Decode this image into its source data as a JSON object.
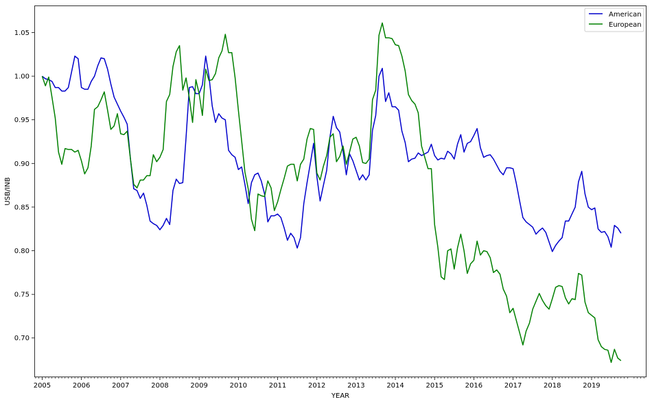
{
  "chart_data": {
    "type": "line",
    "title": "",
    "xlabel": "YEAR",
    "ylabel": "USB/INB",
    "xlim": [
      2004.8,
      2020.4
    ],
    "ylim": [
      0.655,
      1.081
    ],
    "x_ticks": [
      2005,
      2006,
      2007,
      2008,
      2009,
      2010,
      2011,
      2012,
      2013,
      2014,
      2015,
      2016,
      2017,
      2018,
      2019
    ],
    "x_tick_labels": [
      "2005",
      "2006",
      "2007",
      "2008",
      "2009",
      "2010",
      "2011",
      "2012",
      "2013",
      "2014",
      "2015",
      "2016",
      "2017",
      "2018",
      "2019"
    ],
    "y_ticks": [
      0.7,
      0.75,
      0.8,
      0.85,
      0.9,
      0.95,
      1.0,
      1.05
    ],
    "y_tick_labels": [
      "0.70",
      "0.75",
      "0.80",
      "0.85",
      "0.90",
      "0.95",
      "1.00",
      "1.05"
    ],
    "grid": false,
    "legend": "top-right",
    "series": [
      {
        "name": "American",
        "color": "#0000cc",
        "x": [
          2005.0,
          2005.083,
          2005.167,
          2005.25,
          2005.333,
          2005.417,
          2005.5,
          2005.583,
          2005.667,
          2005.75,
          2005.833,
          2005.917,
          2006.0,
          2006.083,
          2006.167,
          2006.25,
          2006.333,
          2006.417,
          2006.5,
          2006.583,
          2006.667,
          2006.75,
          2006.833,
          2006.917,
          2007.0,
          2007.083,
          2007.167,
          2007.25,
          2007.333,
          2007.417,
          2007.5,
          2007.583,
          2007.667,
          2007.75,
          2007.833,
          2007.917,
          2008.0,
          2008.083,
          2008.167,
          2008.25,
          2008.333,
          2008.417,
          2008.5,
          2008.583,
          2008.667,
          2008.75,
          2008.833,
          2008.917,
          2009.0,
          2009.083,
          2009.167,
          2009.25,
          2009.333,
          2009.417,
          2009.5,
          2009.583,
          2009.667,
          2009.75,
          2009.833,
          2009.917,
          2010.0,
          2010.083,
          2010.167,
          2010.25,
          2010.333,
          2010.417,
          2010.5,
          2010.583,
          2010.667,
          2010.75,
          2010.833,
          2010.917,
          2011.0,
          2011.083,
          2011.167,
          2011.25,
          2011.333,
          2011.417,
          2011.5,
          2011.583,
          2011.667,
          2011.75,
          2011.833,
          2011.917,
          2012.0,
          2012.083,
          2012.167,
          2012.25,
          2012.333,
          2012.417,
          2012.5,
          2012.583,
          2012.667,
          2012.75,
          2012.833,
          2012.917,
          2013.0,
          2013.083,
          2013.167,
          2013.25,
          2013.333,
          2013.417,
          2013.5,
          2013.583,
          2013.667,
          2013.75,
          2013.833,
          2013.917,
          2014.0,
          2014.083,
          2014.167,
          2014.25,
          2014.333,
          2014.417,
          2014.5,
          2014.583,
          2014.667,
          2014.75,
          2014.833,
          2014.917,
          2015.0,
          2015.083,
          2015.167,
          2015.25,
          2015.333,
          2015.417,
          2015.5,
          2015.583,
          2015.667,
          2015.75,
          2015.833,
          2015.917,
          2016.0,
          2016.083,
          2016.167,
          2016.25,
          2016.333,
          2016.417,
          2016.5,
          2016.583,
          2016.667,
          2016.75,
          2016.833,
          2016.917,
          2017.0,
          2017.083,
          2017.167,
          2017.25,
          2017.333,
          2017.417,
          2017.5,
          2017.583,
          2017.667,
          2017.75,
          2017.833,
          2017.917,
          2018.0,
          2018.083,
          2018.167,
          2018.25,
          2018.333,
          2018.417,
          2018.5,
          2018.583,
          2018.667,
          2018.75,
          2018.833,
          2018.917,
          2019.0,
          2019.083,
          2019.167,
          2019.25,
          2019.333,
          2019.417,
          2019.5,
          2019.583,
          2019.667,
          2019.75
        ],
        "y": [
          1.0,
          0.997,
          0.996,
          0.994,
          0.987,
          0.987,
          0.983,
          0.983,
          0.987,
          1.005,
          1.023,
          1.02,
          0.987,
          0.985,
          0.985,
          0.994,
          1.0,
          1.012,
          1.021,
          1.02,
          1.008,
          0.991,
          0.976,
          0.968,
          0.96,
          0.953,
          0.945,
          0.905,
          0.871,
          0.869,
          0.86,
          0.866,
          0.852,
          0.834,
          0.831,
          0.829,
          0.824,
          0.829,
          0.837,
          0.83,
          0.869,
          0.882,
          0.877,
          0.878,
          0.93,
          0.987,
          0.988,
          0.98,
          0.98,
          0.99,
          1.023,
          1.0,
          0.966,
          0.947,
          0.957,
          0.952,
          0.95,
          0.915,
          0.91,
          0.907,
          0.893,
          0.896,
          0.876,
          0.854,
          0.878,
          0.887,
          0.889,
          0.88,
          0.865,
          0.833,
          0.84,
          0.84,
          0.842,
          0.838,
          0.826,
          0.812,
          0.82,
          0.815,
          0.803,
          0.815,
          0.854,
          0.878,
          0.9,
          0.923,
          0.885,
          0.857,
          0.875,
          0.892,
          0.93,
          0.954,
          0.941,
          0.936,
          0.914,
          0.887,
          0.911,
          0.903,
          0.892,
          0.881,
          0.887,
          0.881,
          0.887,
          0.938,
          0.955,
          1.0,
          1.009,
          0.971,
          0.981,
          0.965,
          0.965,
          0.961,
          0.937,
          0.924,
          0.902,
          0.905,
          0.906,
          0.912,
          0.909,
          0.911,
          0.913,
          0.922,
          0.909,
          0.904,
          0.906,
          0.905,
          0.914,
          0.911,
          0.905,
          0.922,
          0.933,
          0.913,
          0.923,
          0.925,
          0.932,
          0.94,
          0.918,
          0.907,
          0.909,
          0.91,
          0.905,
          0.898,
          0.891,
          0.887,
          0.895,
          0.895,
          0.894,
          0.877,
          0.857,
          0.838,
          0.833,
          0.83,
          0.827,
          0.819,
          0.823,
          0.826,
          0.821,
          0.81,
          0.799,
          0.806,
          0.811,
          0.815,
          0.834,
          0.834,
          0.842,
          0.85,
          0.879,
          0.891,
          0.865,
          0.85,
          0.847,
          0.849,
          0.825,
          0.821,
          0.822,
          0.816,
          0.804,
          0.829,
          0.826,
          0.82
        ]
      },
      {
        "name": "European",
        "color": "#008000",
        "x": [
          2005.0,
          2005.083,
          2005.167,
          2005.25,
          2005.333,
          2005.417,
          2005.5,
          2005.583,
          2005.667,
          2005.75,
          2005.833,
          2005.917,
          2006.0,
          2006.083,
          2006.167,
          2006.25,
          2006.333,
          2006.417,
          2006.5,
          2006.583,
          2006.667,
          2006.75,
          2006.833,
          2006.917,
          2007.0,
          2007.083,
          2007.167,
          2007.25,
          2007.333,
          2007.417,
          2007.5,
          2007.583,
          2007.667,
          2007.75,
          2007.833,
          2007.917,
          2008.0,
          2008.083,
          2008.167,
          2008.25,
          2008.333,
          2008.417,
          2008.5,
          2008.583,
          2008.667,
          2008.75,
          2008.833,
          2008.917,
          2009.0,
          2009.083,
          2009.167,
          2009.25,
          2009.333,
          2009.417,
          2009.5,
          2009.583,
          2009.667,
          2009.75,
          2009.833,
          2009.917,
          2010.0,
          2010.083,
          2010.167,
          2010.25,
          2010.333,
          2010.417,
          2010.5,
          2010.583,
          2010.667,
          2010.75,
          2010.833,
          2010.917,
          2011.0,
          2011.083,
          2011.167,
          2011.25,
          2011.333,
          2011.417,
          2011.5,
          2011.583,
          2011.667,
          2011.75,
          2011.833,
          2011.917,
          2012.0,
          2012.083,
          2012.167,
          2012.25,
          2012.333,
          2012.417,
          2012.5,
          2012.583,
          2012.667,
          2012.75,
          2012.833,
          2012.917,
          2013.0,
          2013.083,
          2013.167,
          2013.25,
          2013.333,
          2013.417,
          2013.5,
          2013.583,
          2013.667,
          2013.75,
          2013.833,
          2013.917,
          2014.0,
          2014.083,
          2014.167,
          2014.25,
          2014.333,
          2014.417,
          2014.5,
          2014.583,
          2014.667,
          2014.75,
          2014.833,
          2014.917,
          2015.0,
          2015.083,
          2015.167,
          2015.25,
          2015.333,
          2015.417,
          2015.5,
          2015.583,
          2015.667,
          2015.75,
          2015.833,
          2015.917,
          2016.0,
          2016.083,
          2016.167,
          2016.25,
          2016.333,
          2016.417,
          2016.5,
          2016.583,
          2016.667,
          2016.75,
          2016.833,
          2016.917,
          2017.0,
          2017.083,
          2017.167,
          2017.25,
          2017.333,
          2017.417,
          2017.5,
          2017.583,
          2017.667,
          2017.75,
          2017.833,
          2017.917,
          2018.0,
          2018.083,
          2018.167,
          2018.25,
          2018.333,
          2018.417,
          2018.5,
          2018.583,
          2018.667,
          2018.75,
          2018.833,
          2018.917,
          2019.0,
          2019.083,
          2019.167,
          2019.25,
          2019.333,
          2019.417,
          2019.5,
          2019.583,
          2019.667,
          2019.75
        ],
        "y": [
          1.0,
          0.989,
          0.999,
          0.976,
          0.952,
          0.913,
          0.899,
          0.917,
          0.916,
          0.916,
          0.913,
          0.915,
          0.903,
          0.888,
          0.895,
          0.92,
          0.962,
          0.965,
          0.973,
          0.982,
          0.961,
          0.939,
          0.943,
          0.957,
          0.934,
          0.933,
          0.937,
          0.905,
          0.876,
          0.872,
          0.881,
          0.881,
          0.886,
          0.886,
          0.91,
          0.902,
          0.907,
          0.916,
          0.971,
          0.979,
          1.011,
          1.028,
          1.035,
          0.984,
          0.998,
          0.975,
          0.947,
          0.996,
          0.98,
          0.955,
          1.008,
          0.995,
          0.996,
          1.003,
          1.021,
          1.029,
          1.048,
          1.027,
          1.027,
          0.998,
          0.961,
          0.926,
          0.89,
          0.871,
          0.836,
          0.823,
          0.865,
          0.863,
          0.862,
          0.88,
          0.872,
          0.846,
          0.856,
          0.87,
          0.883,
          0.897,
          0.899,
          0.899,
          0.88,
          0.899,
          0.905,
          0.928,
          0.94,
          0.939,
          0.889,
          0.881,
          0.897,
          0.909,
          0.93,
          0.934,
          0.902,
          0.908,
          0.92,
          0.899,
          0.913,
          0.928,
          0.93,
          0.92,
          0.901,
          0.9,
          0.905,
          0.973,
          0.984,
          1.047,
          1.061,
          1.044,
          1.044,
          1.043,
          1.036,
          1.035,
          1.023,
          1.006,
          0.979,
          0.972,
          0.968,
          0.958,
          0.92,
          0.907,
          0.894,
          0.894,
          0.83,
          0.804,
          0.77,
          0.767,
          0.8,
          0.802,
          0.779,
          0.803,
          0.819,
          0.8,
          0.774,
          0.785,
          0.789,
          0.811,
          0.795,
          0.8,
          0.799,
          0.792,
          0.775,
          0.778,
          0.773,
          0.756,
          0.748,
          0.729,
          0.734,
          0.72,
          0.706,
          0.692,
          0.708,
          0.717,
          0.733,
          0.742,
          0.751,
          0.743,
          0.737,
          0.733,
          0.745,
          0.758,
          0.76,
          0.759,
          0.746,
          0.739,
          0.745,
          0.744,
          0.774,
          0.772,
          0.741,
          0.729,
          0.726,
          0.723,
          0.698,
          0.69,
          0.687,
          0.686,
          0.672,
          0.687,
          0.677,
          0.674
        ]
      }
    ]
  }
}
